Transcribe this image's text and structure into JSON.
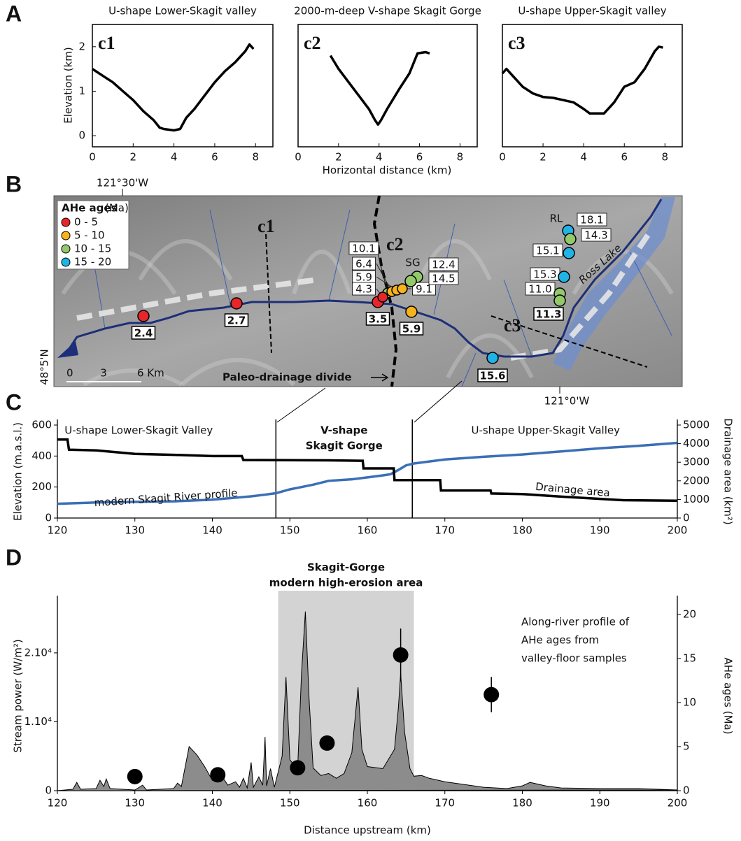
{
  "panel_labels": [
    "A",
    "B",
    "C",
    "D"
  ],
  "panel_a": {
    "ylabel": "Elevation (km)",
    "xlabel": "Horizontal distance (km)"
  },
  "chart_data": [
    {
      "type": "line",
      "title": "U-shape Lower-Skagit valley",
      "tag": "c1",
      "xlim": [
        0,
        8.85
      ],
      "ylim": [
        -0.25,
        2.5
      ],
      "xticks": [
        0,
        2,
        4,
        6,
        8
      ],
      "yticks": [
        0,
        1,
        2
      ],
      "x": [
        0,
        0.5,
        1,
        1.5,
        2,
        2.5,
        3,
        3.3,
        3.5,
        4,
        4.3,
        4.6,
        5,
        5.5,
        6,
        6.5,
        7,
        7.5,
        7.7,
        7.9
      ],
      "series": [
        {
          "color": "#000000",
          "values": [
            1.5,
            1.35,
            1.2,
            1.0,
            0.8,
            0.55,
            0.35,
            0.18,
            0.15,
            0.12,
            0.15,
            0.4,
            0.6,
            0.9,
            1.2,
            1.45,
            1.65,
            1.9,
            2.05,
            1.95
          ]
        }
      ]
    },
    {
      "type": "line",
      "title": "2000-m-deep V-shape Skagit Gorge",
      "tag": "c2",
      "xlim": [
        0,
        8.85
      ],
      "ylim": [
        -0.25,
        2.5
      ],
      "xticks": [
        0,
        2,
        4,
        6,
        8
      ],
      "x": [
        1.6,
        2,
        2.5,
        3,
        3.5,
        3.8,
        3.95,
        4.1,
        4.4,
        5,
        5.5,
        5.9,
        6.3,
        6.5
      ],
      "series": [
        {
          "color": "#000000",
          "values": [
            1.8,
            1.5,
            1.2,
            0.9,
            0.6,
            0.35,
            0.25,
            0.35,
            0.6,
            1.05,
            1.4,
            1.85,
            1.88,
            1.85
          ]
        }
      ]
    },
    {
      "type": "line",
      "title": "U-shape Upper-Skagit valley",
      "tag": "c3",
      "xlim": [
        0,
        8.85
      ],
      "ylim": [
        -0.25,
        2.5
      ],
      "xticks": [
        0,
        2,
        4,
        6,
        8
      ],
      "x": [
        0,
        0.2,
        0.5,
        1,
        1.5,
        2,
        2.5,
        3,
        3.5,
        4,
        4.3,
        5,
        5.5,
        6,
        6.5,
        7,
        7.5,
        7.7,
        7.9
      ],
      "series": [
        {
          "color": "#000000",
          "values": [
            1.4,
            1.5,
            1.35,
            1.1,
            0.95,
            0.87,
            0.85,
            0.8,
            0.75,
            0.6,
            0.5,
            0.5,
            0.75,
            1.1,
            1.2,
            1.5,
            1.9,
            2.0,
            1.98
          ]
        }
      ]
    },
    {
      "type": "line",
      "xlim": [
        120,
        200
      ],
      "ylim": [
        0,
        600
      ],
      "y2lim": [
        0,
        5000
      ],
      "xticks": [
        120,
        130,
        140,
        150,
        160,
        170,
        180,
        190,
        200
      ],
      "yticks": [
        0,
        200,
        400,
        600
      ],
      "y2ticks": [
        0,
        1000,
        2000,
        3000,
        4000,
        5000
      ],
      "ylabel": "Elevation (m.a.s.l.)",
      "y2label": "Drainage area (km²)",
      "region_labels": [
        "U-shape Lower-Skagit Valley",
        [
          "V-shape",
          "Skagit Gorge"
        ],
        "U-shape Upper-Skagit Valley"
      ],
      "dividers": [
        148.2,
        165.8
      ],
      "series": [
        {
          "name": "modern Skagit River profile",
          "color": "#3b6fb6",
          "x": [
            120,
            125,
            130,
            135,
            140,
            145,
            147,
            148.2,
            150,
            151,
            153,
            155,
            158,
            160,
            162,
            163,
            164,
            165,
            166,
            168,
            170,
            175,
            180,
            185,
            190,
            195,
            200
          ],
          "values": [
            92,
            100,
            104,
            108,
            118,
            140,
            152,
            160,
            185,
            195,
            215,
            240,
            250,
            262,
            275,
            283,
            310,
            340,
            352,
            365,
            378,
            395,
            410,
            430,
            450,
            466,
            485
          ]
        },
        {
          "name": "Drainage area",
          "color": "#000000",
          "axis": "y2",
          "x": [
            120,
            121.3,
            121.5,
            122,
            125,
            130,
            135,
            140,
            143.8,
            144,
            155,
            159.4,
            159.5,
            163.4,
            163.5,
            169.4,
            169.5,
            175.9,
            176,
            180,
            185,
            193,
            200
          ],
          "values": [
            4220,
            4220,
            3670,
            3670,
            3640,
            3450,
            3400,
            3330,
            3330,
            3120,
            3100,
            3080,
            2670,
            2670,
            2040,
            2040,
            1480,
            1480,
            1320,
            1290,
            1150,
            960,
            930
          ]
        }
      ]
    },
    {
      "type": "area",
      "xlim": [
        120,
        200
      ],
      "ylim": [
        0,
        27500
      ],
      "y2lim": [
        0,
        21.5
      ],
      "xticks": [
        120,
        130,
        140,
        150,
        160,
        170,
        180,
        190,
        200
      ],
      "yticks": [
        0,
        {
          "value": 10000,
          "label": "1.10⁴"
        },
        {
          "value": 20000,
          "label": "2.10⁴"
        }
      ],
      "y2ticks": [
        0,
        5,
        10,
        15,
        20
      ],
      "xlabel": "Distance upstream (km)",
      "ylabel": "Stream power (W/m²)",
      "y2label": "AHe ages (Ma)",
      "highlight": {
        "range": [
          148.5,
          166
        ],
        "title": [
          "Skagit-Gorge",
          "modern high-erosion area"
        ]
      },
      "annotation": [
        "Along-river profile of",
        "AHe ages from",
        "valley-floor samples"
      ],
      "series": [
        {
          "type": "area",
          "color": "#8c8c8c",
          "x": [
            120,
            122,
            122.5,
            123,
            125,
            125.5,
            126,
            126.3,
            126.8,
            130,
            131,
            131.5,
            135,
            135.5,
            136,
            137,
            138,
            139,
            140,
            141,
            142,
            143,
            143.5,
            144,
            144.5,
            145,
            145.3,
            146,
            146.5,
            146.8,
            147,
            147.5,
            148,
            149,
            149.5,
            150,
            151,
            151.5,
            152,
            152.5,
            153,
            154,
            155,
            156,
            157,
            158,
            158.8,
            159.3,
            160,
            162,
            163.5,
            164,
            164.3,
            164.8,
            165.5,
            166,
            167,
            168,
            170,
            175,
            178,
            180,
            181,
            183,
            185,
            190,
            195,
            200
          ],
          "values": [
            0,
            200,
            1200,
            200,
            300,
            1500,
            600,
            1700,
            300,
            100,
            800,
            100,
            300,
            1100,
            600,
            6400,
            5200,
            3500,
            1500,
            2500,
            800,
            1300,
            500,
            1800,
            400,
            4100,
            500,
            2000,
            800,
            7800,
            700,
            3200,
            500,
            5000,
            16500,
            4500,
            3000,
            17000,
            26000,
            13000,
            3300,
            2200,
            2500,
            1800,
            2500,
            5500,
            15000,
            6000,
            3500,
            3200,
            6000,
            12000,
            17000,
            8500,
            3200,
            2100,
            2200,
            1800,
            1300,
            500,
            300,
            700,
            1200,
            700,
            400,
            300,
            300,
            100
          ]
        },
        {
          "type": "scatter",
          "axis": "y2",
          "color": "#000000",
          "x": [
            130,
            140.7,
            151,
            154.8,
            164.3,
            176
          ],
          "values": [
            1.6,
            1.8,
            2.6,
            5.4,
            15.4,
            10.9
          ],
          "errors": [
            null,
            null,
            null,
            null,
            3,
            2
          ]
        }
      ]
    }
  ],
  "map": {
    "legend_title": "AHe ages",
    "legend_unit": "(Ma)",
    "classes": [
      {
        "label": "0 - 5",
        "color": "#e8262a"
      },
      {
        "label": "5 - 10",
        "color": "#f6b31b"
      },
      {
        "label": "10 - 15",
        "color": "#93c96a"
      },
      {
        "label": "15 - 20",
        "color": "#1fb3e6"
      }
    ],
    "samples": [
      {
        "age": "2.4",
        "color": "#e8262a"
      },
      {
        "age": "2.7",
        "color": "#e8262a"
      },
      {
        "age": "3.5",
        "color": "#e8262a"
      },
      {
        "age": "5.9",
        "color": "#f6b31b"
      },
      {
        "age": "15.6",
        "color": "#1fb3e6"
      },
      {
        "age": "10.1",
        "color": "#93c96a"
      },
      {
        "age": "6.4",
        "color": "#f6b31b"
      },
      {
        "age": "5.9",
        "color": "#f6b31b"
      },
      {
        "age": "4.3",
        "color": "#e8262a"
      },
      {
        "age": "9.1",
        "color": "#f6b31b"
      },
      {
        "age": "12.4",
        "color": "#93c96a"
      },
      {
        "age": "14.5",
        "color": "#93c96a"
      },
      {
        "age": "18.1",
        "color": "#1fb3e6"
      },
      {
        "age": "14.3",
        "color": "#93c96a"
      },
      {
        "age": "15.1",
        "color": "#1fb3e6"
      },
      {
        "age": "15.3",
        "color": "#1fb3e6"
      },
      {
        "age": "11.0",
        "color": "#93c96a"
      },
      {
        "age": "11.3",
        "color": "#93c96a"
      }
    ],
    "profile_labels": [
      "c1",
      "c2",
      "c3"
    ],
    "site_labels": [
      "SG",
      "RL"
    ],
    "lake": "Ross Lake",
    "divide": "Paleo-drainage divide",
    "longitudes": [
      "121°30'W",
      "121°0'W"
    ],
    "latitude": "48°5'N",
    "scale": [
      "0",
      "3",
      "6 Km"
    ]
  }
}
